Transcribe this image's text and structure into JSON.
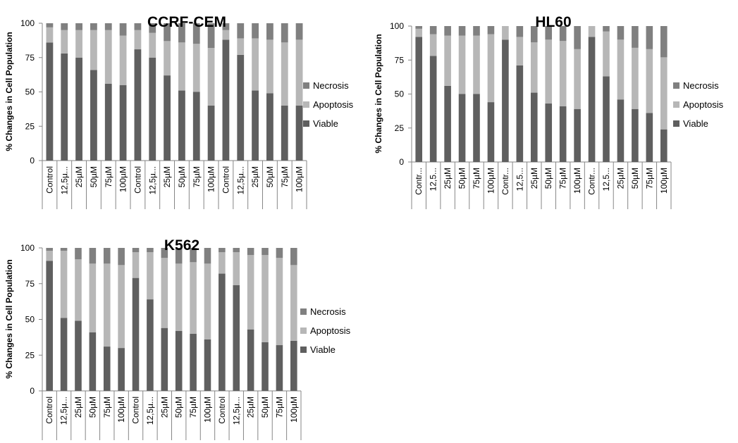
{
  "legend_colors": {
    "Viable": "#5f5f5f",
    "Apoptosis": "#b7b7b7",
    "Necrosis": "#808080"
  },
  "chart_data": [
    {
      "type": "bar",
      "stacked": true,
      "title": "CCRF-CEM",
      "ylabel": "% Changes in Cell Population",
      "ylim": [
        0,
        100
      ],
      "yticks": [
        0,
        25,
        50,
        75,
        100
      ],
      "legend_position": "right",
      "categories": [
        "Control",
        "12,5µ...",
        "25µM",
        "50µM",
        "75µM",
        "100µM",
        "Control",
        "12,5µ...",
        "25µM",
        "50µM",
        "75µM",
        "100µM",
        "Control",
        "12,5µ...",
        "25µM",
        "50µM",
        "75µM",
        "100µM"
      ],
      "series": [
        {
          "name": "Viable",
          "values": [
            86,
            78,
            75,
            66,
            56,
            55,
            81,
            75,
            62,
            51,
            50,
            40,
            88,
            77,
            51,
            49,
            40,
            40
          ]
        },
        {
          "name": "Apoptosis",
          "values": [
            11,
            17,
            20,
            29,
            39,
            36,
            14,
            18,
            25,
            35,
            35,
            42,
            7,
            12,
            38,
            39,
            46,
            48
          ]
        },
        {
          "name": "Necrosis",
          "values": [
            3,
            5,
            5,
            5,
            5,
            9,
            5,
            7,
            13,
            14,
            15,
            18,
            5,
            11,
            11,
            12,
            14,
            12
          ]
        }
      ]
    },
    {
      "type": "bar",
      "stacked": true,
      "title": "HL60",
      "ylabel": "% Changes in Cell Population",
      "ylim": [
        0,
        100
      ],
      "yticks": [
        0,
        25,
        50,
        75,
        100
      ],
      "legend_position": "right",
      "categories": [
        "Contr...",
        "12,5...",
        "25µM",
        "50µM",
        "75µM",
        "100µM",
        "Contr...",
        "12,5...",
        "25µM",
        "50µM",
        "75µM",
        "100µM",
        "Contr...",
        "12,5...",
        "25µM",
        "50µM",
        "75µM",
        "100µM"
      ],
      "series": [
        {
          "name": "Viable",
          "values": [
            92,
            78,
            56,
            50,
            50,
            44,
            90,
            71,
            51,
            43,
            41,
            39,
            92,
            63,
            46,
            39,
            36,
            24
          ]
        },
        {
          "name": "Apoptosis",
          "values": [
            6,
            16,
            37,
            43,
            43,
            50,
            10,
            21,
            37,
            47,
            48,
            44,
            8,
            33,
            44,
            45,
            47,
            53
          ]
        },
        {
          "name": "Necrosis",
          "values": [
            2,
            6,
            7,
            7,
            7,
            6,
            0,
            8,
            12,
            10,
            11,
            17,
            0,
            4,
            10,
            16,
            17,
            23
          ]
        }
      ]
    },
    {
      "type": "bar",
      "stacked": true,
      "title": "K562",
      "ylabel": "% Changes in Cell Population",
      "ylim": [
        0,
        100
      ],
      "yticks": [
        0,
        25,
        50,
        75,
        100
      ],
      "legend_position": "right",
      "categories": [
        "Control",
        "12,5µ...",
        "25µM",
        "50µM",
        "75µM",
        "100µM",
        "Control",
        "12,5µ...",
        "25µM",
        "50µM",
        "75µM",
        "100µM",
        "Control",
        "12,5µ...",
        "25µM",
        "50µM",
        "75µM",
        "100µM"
      ],
      "series": [
        {
          "name": "Viable",
          "values": [
            91,
            51,
            49,
            41,
            31,
            30,
            79,
            64,
            44,
            42,
            40,
            36,
            82,
            74,
            43,
            34,
            32,
            35
          ]
        },
        {
          "name": "Apoptosis",
          "values": [
            7,
            47,
            43,
            48,
            58,
            58,
            18,
            33,
            49,
            47,
            50,
            53,
            15,
            23,
            52,
            61,
            61,
            53
          ]
        },
        {
          "name": "Necrosis",
          "values": [
            2,
            2,
            8,
            11,
            11,
            12,
            3,
            3,
            7,
            11,
            10,
            11,
            3,
            3,
            5,
            5,
            7,
            12
          ]
        }
      ]
    }
  ]
}
